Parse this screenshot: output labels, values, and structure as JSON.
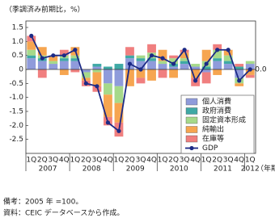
{
  "chart_data": {
    "type": "stacked-bar-line",
    "y_label": "（季調済み前期比，%）",
    "categories": [
      "1Q",
      "2Q",
      "3Q",
      "4Q",
      "1Q",
      "2Q",
      "3Q",
      "4Q",
      "1Q",
      "2Q",
      "3Q",
      "4Q",
      "1Q",
      "2Q",
      "3Q",
      "4Q",
      "1Q",
      "2Q",
      "3Q",
      "4Q",
      "1Q"
    ],
    "years": [
      {
        "label": "2007",
        "count": 4
      },
      {
        "label": "2008",
        "count": 4
      },
      {
        "label": "2009",
        "count": 4
      },
      {
        "label": "2010",
        "count": 4
      },
      {
        "label": "2011",
        "count": 4
      },
      {
        "label": "2012",
        "count": 1
      }
    ],
    "x_unit": "（年期）",
    "series": [
      {
        "name": "個人消費",
        "color": "#8f9bdb",
        "values": [
          0.4,
          0.3,
          0.2,
          0.3,
          0.3,
          -0.1,
          0.1,
          -0.5,
          -0.6,
          0.4,
          0.3,
          0.3,
          0.2,
          0.1,
          0.2,
          0.1,
          -0.1,
          0.3,
          0.2,
          -0.3,
          0.2
        ]
      },
      {
        "name": "政府消費",
        "color": "#3fa9a5",
        "values": [
          0.1,
          0.1,
          0.0,
          0.1,
          0.1,
          0.0,
          0.1,
          0.1,
          0.2,
          0.1,
          0.1,
          0.1,
          0.0,
          0.1,
          0.1,
          0.0,
          0.1,
          0.1,
          0.1,
          0.1,
          0.0
        ]
      },
      {
        "name": "固定資本形成",
        "color": "#a6d98a",
        "values": [
          0.2,
          0.1,
          0.1,
          0.1,
          0.1,
          -0.2,
          -0.1,
          -0.4,
          -0.6,
          0.0,
          0.1,
          0.2,
          0.1,
          0.2,
          0.1,
          0.1,
          0.2,
          0.3,
          0.2,
          -0.2,
          0.1
        ]
      },
      {
        "name": "純輸出",
        "color": "#f6a550",
        "values": [
          0.3,
          0.3,
          0.2,
          -0.2,
          0.3,
          -0.1,
          -0.5,
          -0.8,
          -0.7,
          -0.6,
          -0.3,
          -0.4,
          0.4,
          -0.3,
          0.2,
          -0.3,
          0.4,
          -0.2,
          0.2,
          -0.1,
          -0.2
        ]
      },
      {
        "name": "在庫等",
        "color": "#f07f7f",
        "values": [
          0.2,
          -0.3,
          0.0,
          0.2,
          -0.1,
          -0.2,
          -0.2,
          -0.3,
          -0.5,
          0.3,
          -0.2,
          0.3,
          -0.3,
          0.1,
          0.1,
          -0.3,
          -0.4,
          0.2,
          0.0,
          0.1,
          -0.1
        ]
      }
    ],
    "line": {
      "name": "GDP",
      "color": "#1c2a86",
      "values": [
        1.2,
        0.4,
        0.5,
        0.5,
        0.7,
        -0.5,
        -0.6,
        -1.9,
        -2.2,
        0.2,
        0.0,
        0.5,
        0.4,
        0.2,
        0.7,
        -0.4,
        0.2,
        0.7,
        0.7,
        -0.4,
        0.0
      ],
      "value_labels": [
        null,
        null,
        null,
        null,
        null,
        null,
        null,
        null,
        null,
        null,
        null,
        null,
        null,
        null,
        null,
        null,
        null,
        null,
        null,
        null,
        "0.0"
      ]
    },
    "ylim": [
      -3.0,
      1.5
    ],
    "yticks": [
      {
        "value": 1.5,
        "label": "1.5"
      },
      {
        "value": 1,
        "label": "1.0"
      },
      0.5,
      0,
      -0.5,
      {
        "value": -1,
        "label": "-1.0"
      },
      -1.5,
      {
        "value": -2,
        "label": "-2.0"
      },
      -2.5
    ],
    "notes": [
      "備考：2005 年 =100。",
      "資料：CEIC データベースから作成。"
    ]
  }
}
